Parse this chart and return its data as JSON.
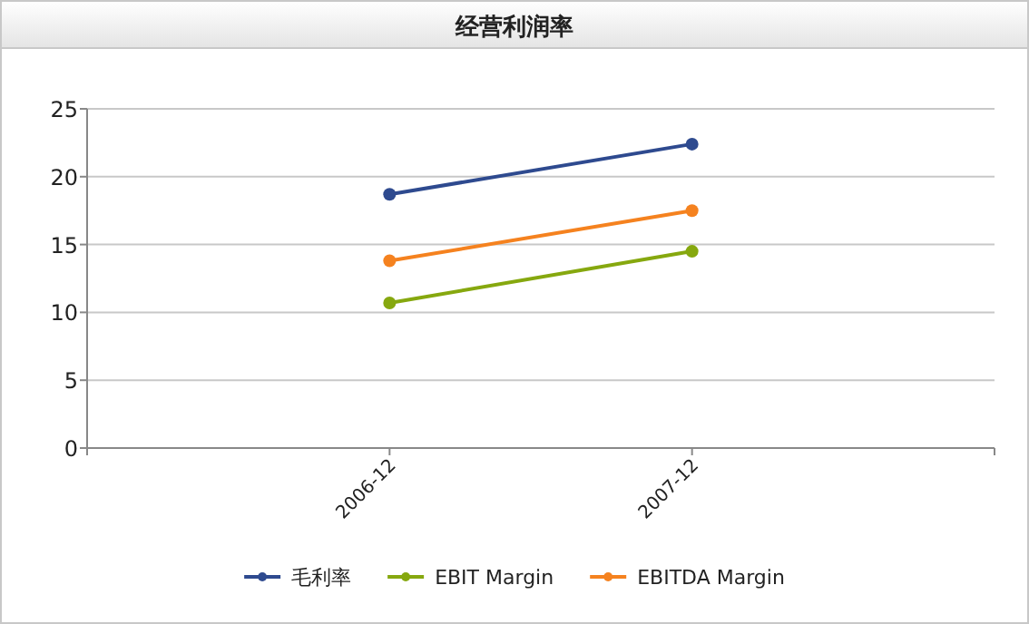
{
  "chart_data": {
    "type": "line",
    "title": "经营利润率",
    "categories": [
      null,
      "2006-12",
      "2007-12",
      null
    ],
    "series": [
      {
        "name": "毛利率",
        "color": "#2e4a8f",
        "values": [
          null,
          18.7,
          22.4,
          null
        ]
      },
      {
        "name": "EBIT Margin",
        "color": "#86a80f",
        "values": [
          null,
          10.7,
          14.5,
          null
        ]
      },
      {
        "name": "EBITDA Margin",
        "color": "#f5821f",
        "values": [
          null,
          13.8,
          17.5,
          null
        ]
      }
    ],
    "ylim": [
      0,
      25
    ],
    "yticks": [
      0,
      5,
      10,
      15,
      20,
      25
    ],
    "grid": "y",
    "legend": "bottom",
    "marker": "circle",
    "line_style": "solid"
  }
}
